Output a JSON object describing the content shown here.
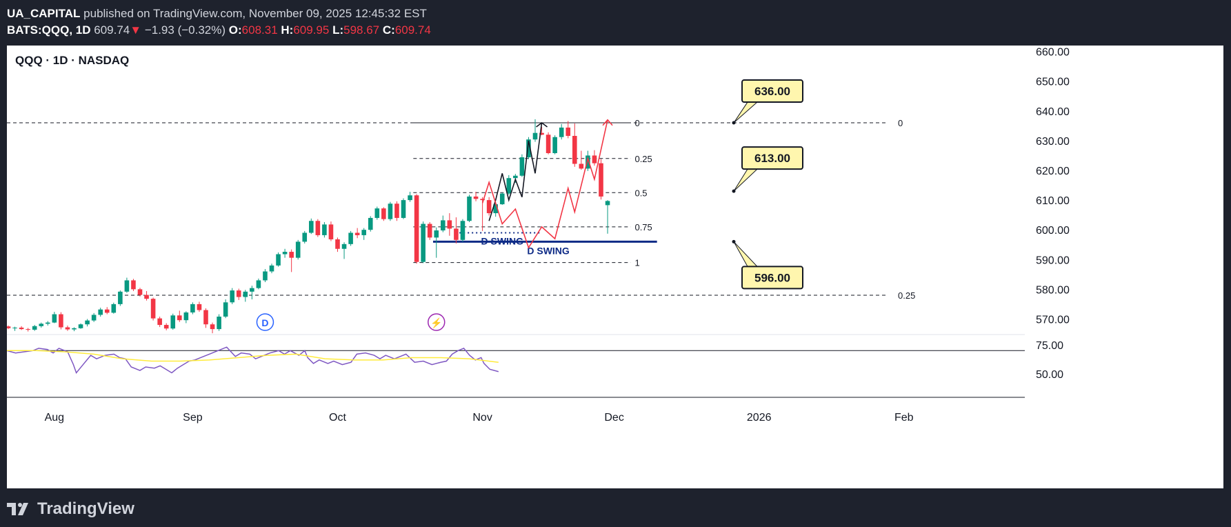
{
  "header": {
    "author": "UA_CAPITAL",
    "published": "published on TradingView.com, November 09, 2025 12:45:32 EST",
    "symbol": "BATS:QQQ, 1D",
    "last": "609.74",
    "change_arrow": "▼",
    "change": "−1.93 (−0.32%)",
    "o_label": "O:",
    "o": "608.31",
    "h_label": "H:",
    "h": "609.95",
    "l_label": "L:",
    "l": "598.67",
    "c_label": "C:",
    "c": "609.74"
  },
  "legend": {
    "title": "QQQ · 1D · NASDAQ"
  },
  "footer": {
    "brand": "TradingView",
    "icon": "tradingview-logo-icon"
  },
  "colors": {
    "up": "#089981",
    "down": "#f23645",
    "rsi": "#7e57c2",
    "rsi_ma": "#ffeb3b",
    "swing": "#0d2a86",
    "callout_bg": "#fff6ae",
    "badge_d": "#2962ff",
    "badge_event": "#9c27b0"
  },
  "chart_data": {
    "type": "candlestick",
    "price_axis": {
      "range": [
        565,
        662
      ],
      "ticks": [
        "660.00",
        "650.00",
        "640.00",
        "630.00",
        "620.00",
        "610.00",
        "600.00",
        "590.00",
        "580.00",
        "570.00"
      ]
    },
    "rsi_axis": {
      "range": [
        30,
        82
      ],
      "ticks": [
        "75.00",
        "50.00"
      ],
      "overbought": 70
    },
    "time_labels": [
      {
        "i": 7,
        "text": "Aug"
      },
      {
        "i": 28,
        "text": "Sep"
      },
      {
        "i": 50,
        "text": "Oct"
      },
      {
        "i": 72,
        "text": "Nov"
      },
      {
        "i": 92,
        "text": "Dec"
      },
      {
        "i": 114,
        "text": "2026"
      },
      {
        "i": 136,
        "text": "Feb"
      }
    ],
    "candles": [
      [
        567.5,
        567.8,
        566.6,
        566.9
      ],
      [
        566.9,
        567.4,
        566.0,
        567.1
      ],
      [
        567.1,
        567.6,
        566.3,
        566.6
      ],
      [
        566.6,
        567.0,
        565.8,
        566.4
      ],
      [
        566.4,
        568.0,
        566.0,
        567.6
      ],
      [
        567.6,
        568.8,
        567.1,
        568.4
      ],
      [
        568.4,
        569.3,
        567.8,
        568.8
      ],
      [
        568.8,
        572.4,
        568.6,
        571.6
      ],
      [
        571.6,
        572.3,
        566.5,
        567.2
      ],
      [
        567.2,
        567.8,
        566.0,
        566.5
      ],
      [
        566.5,
        567.2,
        565.9,
        566.9
      ],
      [
        566.9,
        568.5,
        566.7,
        568.2
      ],
      [
        568.2,
        570.0,
        567.5,
        569.5
      ],
      [
        569.5,
        572.0,
        569.0,
        571.4
      ],
      [
        571.4,
        573.8,
        570.8,
        573.2
      ],
      [
        573.2,
        574.0,
        571.6,
        572.1
      ],
      [
        572.1,
        575.5,
        571.8,
        575.0
      ],
      [
        575.0,
        579.6,
        574.4,
        579.2
      ],
      [
        579.2,
        583.9,
        578.8,
        583.0
      ],
      [
        583.0,
        583.5,
        579.4,
        580.0
      ],
      [
        580.0,
        580.5,
        577.6,
        578.1
      ],
      [
        578.1,
        579.4,
        576.2,
        576.8
      ],
      [
        576.8,
        577.2,
        569.5,
        570.2
      ],
      [
        570.2,
        570.8,
        567.3,
        568.0
      ],
      [
        568.0,
        568.6,
        566.2,
        566.8
      ],
      [
        566.8,
        571.8,
        566.4,
        571.2
      ],
      [
        571.2,
        572.8,
        569.0,
        569.6
      ],
      [
        569.6,
        572.6,
        568.6,
        572.2
      ],
      [
        572.2,
        575.6,
        571.6,
        575.0
      ],
      [
        575.0,
        575.8,
        572.4,
        573.0
      ],
      [
        573.0,
        573.6,
        567.0,
        568.2
      ],
      [
        568.2,
        568.8,
        565.2,
        566.6
      ],
      [
        566.6,
        571.6,
        566.0,
        570.8
      ],
      [
        570.8,
        576.6,
        570.3,
        575.6
      ],
      [
        575.6,
        580.4,
        575.0,
        579.6
      ],
      [
        579.6,
        580.2,
        576.4,
        577.4
      ],
      [
        577.4,
        579.8,
        575.8,
        579.2
      ],
      [
        579.2,
        581.2,
        576.6,
        580.4
      ],
      [
        580.4,
        583.6,
        580.0,
        583.0
      ],
      [
        583.0,
        586.8,
        582.4,
        586.0
      ],
      [
        586.0,
        588.6,
        585.4,
        588.0
      ],
      [
        588.0,
        592.4,
        587.6,
        591.8
      ],
      [
        591.8,
        593.6,
        590.6,
        592.6
      ],
      [
        592.6,
        593.4,
        585.8,
        590.6
      ],
      [
        590.6,
        596.6,
        590.0,
        596.0
      ],
      [
        596.0,
        599.6,
        595.4,
        599.0
      ],
      [
        599.0,
        603.8,
        598.6,
        603.0
      ],
      [
        603.0,
        603.6,
        597.6,
        598.2
      ],
      [
        598.2,
        602.6,
        597.4,
        601.8
      ],
      [
        601.8,
        602.8,
        596.2,
        596.8
      ],
      [
        596.8,
        597.4,
        592.6,
        593.6
      ],
      [
        593.6,
        595.8,
        590.2,
        595.2
      ],
      [
        595.2,
        599.6,
        594.6,
        599.0
      ],
      [
        599.0,
        600.6,
        597.2,
        598.2
      ],
      [
        598.2,
        600.6,
        596.6,
        600.0
      ],
      [
        600.0,
        604.6,
        599.4,
        604.0
      ],
      [
        604.0,
        607.8,
        603.4,
        607.2
      ],
      [
        607.2,
        607.6,
        603.0,
        603.6
      ],
      [
        603.6,
        609.4,
        603.0,
        608.8
      ],
      [
        608.8,
        609.6,
        603.0,
        604.0
      ],
      [
        604.0,
        610.6,
        603.6,
        610.0
      ],
      [
        610.0,
        612.8,
        609.4,
        611.6
      ],
      [
        611.6,
        612.0,
        588.6,
        589.2
      ],
      [
        589.2,
        602.8,
        588.8,
        602.0
      ],
      [
        602.0,
        602.6,
        596.6,
        597.4
      ],
      [
        597.4,
        600.8,
        590.6,
        599.8
      ],
      [
        599.8,
        604.8,
        599.2,
        603.2
      ],
      [
        603.2,
        605.6,
        598.0,
        600.4
      ],
      [
        600.4,
        604.2,
        595.4,
        596.6
      ],
      [
        596.6,
        603.6,
        596.0,
        603.0
      ],
      [
        603.0,
        611.8,
        602.6,
        611.2
      ],
      [
        611.2,
        612.8,
        609.6,
        610.4
      ],
      [
        610.4,
        611.0,
        599.6,
        610.0
      ],
      [
        610.0,
        611.0,
        604.8,
        605.6
      ],
      [
        605.6,
        609.0,
        604.4,
        608.6
      ],
      [
        608.6,
        612.6,
        608.4,
        612.2
      ],
      [
        612.2,
        618.4,
        611.8,
        617.4
      ],
      [
        617.4,
        618.8,
        615.8,
        618.2
      ],
      [
        618.2,
        625.4,
        617.8,
        624.4
      ],
      [
        624.4,
        631.2,
        623.8,
        630.4
      ],
      [
        630.4,
        637.2,
        629.6,
        632.6
      ],
      [
        632.6,
        634.6,
        631.8,
        632.0
      ],
      [
        632.0,
        632.8,
        625.4,
        625.8
      ],
      [
        625.8,
        631.8,
        625.4,
        631.2
      ],
      [
        631.2,
        635.6,
        630.4,
        634.4
      ],
      [
        634.4,
        636.6,
        630.8,
        631.6
      ],
      [
        631.6,
        635.8,
        621.2,
        622.2
      ],
      [
        622.2,
        626.6,
        620.2,
        620.6
      ],
      [
        620.6,
        626.6,
        619.8,
        625.0
      ],
      [
        625.0,
        626.8,
        621.6,
        622.4
      ],
      [
        622.4,
        623.8,
        610.2,
        611.2
      ],
      [
        608.3,
        610.0,
        598.7,
        609.7
      ]
    ],
    "rsi_points": [
      [
        0,
        70
      ],
      [
        3,
        68
      ],
      [
        6,
        69
      ],
      [
        9,
        70
      ],
      [
        11,
        72
      ],
      [
        14,
        71
      ],
      [
        16,
        68
      ],
      [
        18,
        72
      ],
      [
        21,
        69
      ],
      [
        23,
        58
      ],
      [
        24,
        51
      ],
      [
        26,
        57
      ],
      [
        29,
        66
      ],
      [
        31,
        63
      ],
      [
        34,
        66
      ],
      [
        37,
        67
      ],
      [
        39,
        64
      ],
      [
        41,
        63
      ],
      [
        43,
        56
      ],
      [
        46,
        53
      ],
      [
        48,
        56
      ],
      [
        51,
        55
      ],
      [
        53,
        57
      ],
      [
        55,
        54
      ],
      [
        57,
        51
      ],
      [
        59,
        55
      ],
      [
        61,
        58
      ],
      [
        63,
        61
      ],
      [
        65,
        62
      ],
      [
        67,
        64
      ],
      [
        70,
        67
      ],
      [
        73,
        70
      ],
      [
        76,
        73
      ],
      [
        79,
        65
      ],
      [
        81,
        68
      ],
      [
        84,
        67
      ],
      [
        86,
        63
      ],
      [
        89,
        66
      ],
      [
        91,
        68
      ],
      [
        94,
        70
      ],
      [
        96,
        67
      ],
      [
        98,
        70
      ],
      [
        101,
        66
      ],
      [
        103,
        70
      ],
      [
        104,
        64
      ],
      [
        106,
        59
      ],
      [
        108,
        62
      ],
      [
        111,
        59
      ],
      [
        113,
        61
      ],
      [
        116,
        58
      ],
      [
        119,
        60
      ],
      [
        121,
        67
      ],
      [
        124,
        68
      ],
      [
        127,
        66
      ],
      [
        129,
        63
      ],
      [
        131,
        66
      ],
      [
        134,
        63
      ],
      [
        136,
        65
      ],
      [
        138,
        67
      ],
      [
        141,
        60
      ],
      [
        144,
        61
      ],
      [
        147,
        58
      ],
      [
        150,
        60
      ],
      [
        152,
        61
      ],
      [
        154,
        67
      ],
      [
        156,
        70
      ],
      [
        158,
        72
      ],
      [
        160,
        66
      ],
      [
        162,
        62
      ],
      [
        164,
        64
      ],
      [
        165,
        59
      ],
      [
        167,
        54
      ],
      [
        170,
        52
      ]
    ],
    "rsi_ma_points": [
      [
        0,
        70
      ],
      [
        10,
        70
      ],
      [
        20,
        69
      ],
      [
        30,
        67
      ],
      [
        40,
        63
      ],
      [
        50,
        61
      ],
      [
        60,
        61
      ],
      [
        70,
        62
      ],
      [
        80,
        64
      ],
      [
        90,
        66
      ],
      [
        100,
        67
      ],
      [
        110,
        63
      ],
      [
        120,
        62
      ],
      [
        130,
        62
      ],
      [
        140,
        64
      ],
      [
        150,
        64
      ],
      [
        160,
        63
      ],
      [
        170,
        60
      ]
    ],
    "levels": [
      {
        "price": 636.0,
        "label": "0",
        "scope": "wide"
      },
      {
        "price": 578.0,
        "label": "0.25",
        "scope": "wide"
      }
    ],
    "fib_levels": [
      {
        "price": 636.0,
        "label": "0"
      },
      {
        "price": 624.0,
        "label": "0.25"
      },
      {
        "price": 612.5,
        "label": "0.5"
      },
      {
        "price": 601.0,
        "label": "0.75"
      },
      {
        "price": 589.0,
        "label": "1"
      }
    ],
    "swing_label_upper": "D SWING",
    "swing_label_lower": "D SWING",
    "swing_price": 596.0,
    "swing_dotted_price": 599.0,
    "callouts": [
      "636.00",
      "613.00",
      "596.00"
    ],
    "callout_prices": [
      636.0,
      613.0,
      596.0
    ],
    "badges": [
      {
        "i": 39,
        "text": "D"
      },
      {
        "i": 65,
        "text": "⚡"
      }
    ],
    "projection_black": [
      [
        73,
        603
      ],
      [
        74,
        610
      ],
      [
        75,
        619
      ],
      [
        76,
        610
      ],
      [
        77,
        617
      ],
      [
        78,
        611
      ],
      [
        79,
        630
      ],
      [
        80,
        619
      ],
      [
        81,
        636
      ]
    ],
    "projection_red": [
      [
        72,
        609
      ],
      [
        73,
        616
      ],
      [
        75,
        602
      ],
      [
        77,
        607
      ],
      [
        79,
        594
      ],
      [
        81,
        601
      ],
      [
        83,
        597
      ],
      [
        85,
        614
      ],
      [
        86,
        606
      ],
      [
        88,
        624
      ],
      [
        89,
        617
      ],
      [
        91,
        637
      ]
    ]
  }
}
